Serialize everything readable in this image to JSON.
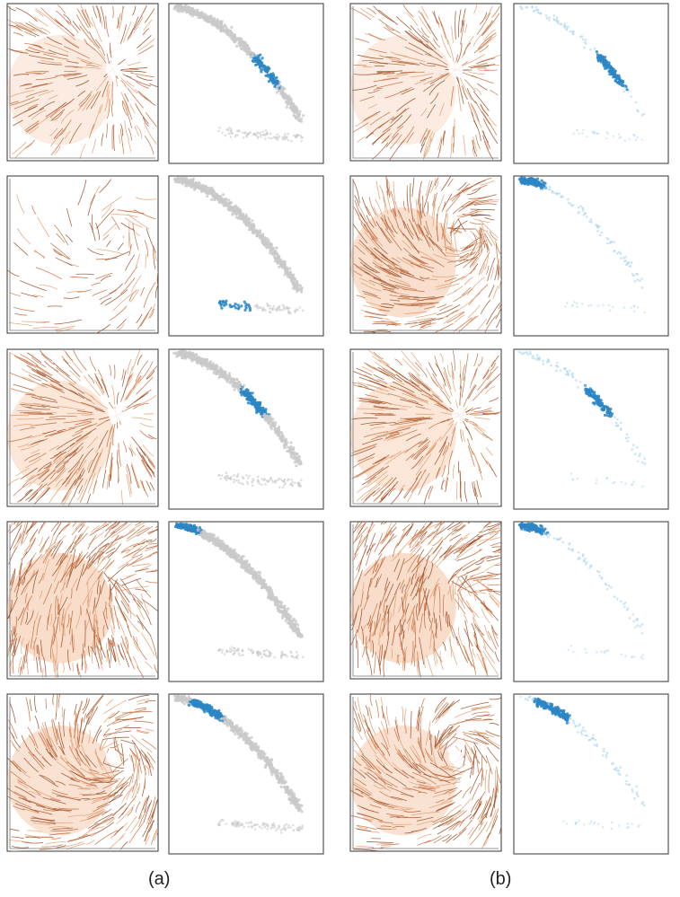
{
  "figure": {
    "captions": [
      "(a)",
      "(b)"
    ],
    "colors": {
      "line_dark": "#9a4a22",
      "line_mid": "#c46a3a",
      "line_light": "#e39c6f",
      "glow": "#f2b48c",
      "point_gray": "#c9c9c9",
      "point_blue": "#2b86c5",
      "point_blue_light": "#a9d3ee",
      "frame": "#333333"
    },
    "columns": [
      {
        "caption_index": 0,
        "rows": [
          {
            "streamlines": "radial-sink-upper-right",
            "density": 0.6,
            "highlight": "middle-lower-cluster",
            "background_points": true
          },
          {
            "streamlines": "sparse-swirl",
            "density": 0.2,
            "highlight": "bottom-left-arm",
            "background_points": true
          },
          {
            "streamlines": "radial-sink-center-right",
            "density": 0.75,
            "highlight": "middle-cluster",
            "background_points": true
          },
          {
            "streamlines": "dense-uniform",
            "density": 1.0,
            "highlight": "top-left-tip",
            "background_points": true
          },
          {
            "streamlines": "spiral-upper-right",
            "density": 0.85,
            "highlight": "upper-arm",
            "background_points": true
          }
        ]
      },
      {
        "caption_index": 1,
        "rows": [
          {
            "streamlines": "radial-sink-upper-right",
            "density": 0.6,
            "highlight": "middle-lower-cluster",
            "background_points": false
          },
          {
            "streamlines": "vortex-upper-right-dense",
            "density": 0.95,
            "highlight": "top-left-tip",
            "background_points": false
          },
          {
            "streamlines": "radial-sink-center-right",
            "density": 0.75,
            "highlight": "middle-cluster",
            "background_points": false
          },
          {
            "streamlines": "dense-uniform",
            "density": 1.0,
            "highlight": "top-left-tip",
            "background_points": false
          },
          {
            "streamlines": "spiral-upper-right",
            "density": 0.85,
            "highlight": "upper-arm",
            "background_points": false
          }
        ]
      }
    ]
  }
}
